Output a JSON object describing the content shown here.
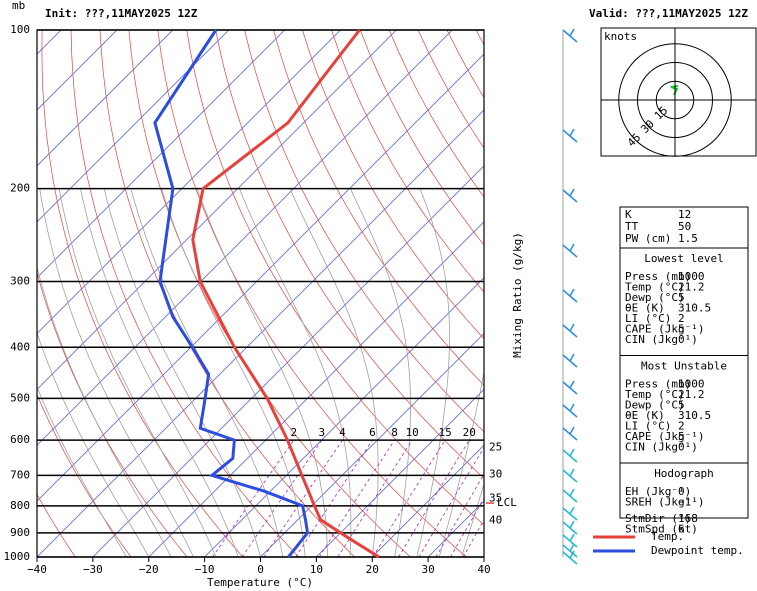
{
  "chart_data": {
    "type": "skew-t",
    "title": "Init: ???,11MAY2025  12Z",
    "subtitle": "Valid: ???,11MAY2025  12Z",
    "y_label": "mb",
    "x_label": "Temperature (°C)",
    "mixing_ratio_label": "Mixing Ratio (g/kg)",
    "log_y": true,
    "ylim": [
      1000,
      100
    ],
    "yticks": [
      100,
      200,
      300,
      400,
      500,
      600,
      700,
      800,
      900,
      1000
    ],
    "xlim": [
      -40,
      40
    ],
    "xticks": [
      {
        "value": -40,
        "label": "−40"
      },
      {
        "value": -30,
        "label": "−30"
      },
      {
        "value": -20,
        "label": "−20"
      },
      {
        "value": -10,
        "label": "−10"
      },
      0,
      10,
      20,
      30,
      40
    ],
    "mixing_ratios": [
      2,
      3,
      4,
      6,
      8,
      10,
      15,
      20,
      25,
      30,
      35,
      40
    ],
    "lcl": {
      "label": "LCL",
      "pressure": 790
    },
    "series": [
      {
        "name": "Temp.",
        "color": "#e8413c",
        "pressure": [
          1000,
          925,
          850,
          800,
          750,
          700,
          600,
          500,
          400,
          300,
          250,
          200,
          150,
          100
        ],
        "values": [
          21.2,
          12.9,
          4.1,
          0.5,
          -3.2,
          -7.2,
          -16.1,
          -27.2,
          -42.2,
          -60.1,
          -68.9,
          -76.2,
          -72.8,
          -76.6
        ]
      },
      {
        "name": "Dewpoint temp.",
        "color": "#2b4de0",
        "pressure": [
          1000,
          900,
          850,
          800,
          750,
          700,
          650,
          600,
          570,
          500,
          450,
          400,
          350,
          300,
          200,
          150,
          100
        ],
        "values": [
          5,
          4.1,
          1.4,
          -1.6,
          -11.1,
          -23.3,
          -22.6,
          -25.6,
          -33.8,
          -38.3,
          -42.0,
          -49.7,
          -58.7,
          -67.3,
          -81.6,
          -96.6,
          -102.3
        ]
      }
    ],
    "hodograph": {
      "title": "knots",
      "rings": [
        15,
        30,
        45
      ]
    },
    "indices": {
      "rows": [
        [
          "K",
          12
        ],
        [
          "TT",
          50
        ],
        [
          "PW (cm)",
          1.5
        ]
      ],
      "sections": [
        {
          "title": "Lowest level",
          "rows": [
            [
              "Press (mb)",
              1000
            ],
            [
              "Temp (°C)",
              21.2
            ],
            [
              "Dewp (°C)",
              5
            ],
            [
              "θE (K)",
              310.5
            ],
            [
              "LI (°C)",
              2
            ],
            [
              "CAPE (Jkg⁻¹)",
              5
            ],
            [
              "CIN (Jkg⁻¹)",
              0
            ]
          ]
        },
        {
          "title": "Most Unstable",
          "rows": [
            [
              "Press (mb)",
              1000
            ],
            [
              "Temp (°C)",
              21.2
            ],
            [
              "Dewp (°C)",
              5
            ],
            [
              "θE (K)",
              310.5
            ],
            [
              "LI (°C)",
              2
            ],
            [
              "CAPE (Jkg⁻¹)",
              5
            ],
            [
              "CIN (Jkg⁻¹)",
              0
            ]
          ]
        },
        {
          "title": "Hodograph",
          "rows": [
            [
              "EH (Jkg⁻¹)",
              0
            ],
            [
              "SREH (Jkg⁻¹)",
              "−1"
            ],
            [
              "StmDir (°)",
              168
            ],
            [
              "StmSpd (kt)",
              6
            ]
          ]
        }
      ]
    }
  }
}
